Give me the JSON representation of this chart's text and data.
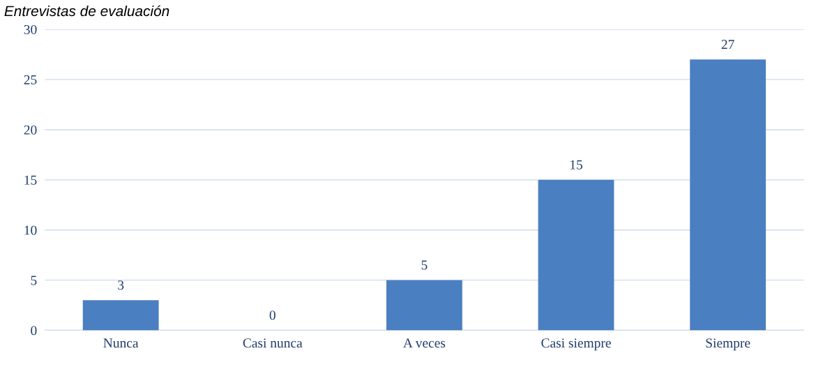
{
  "chart_data": {
    "type": "bar",
    "title": "Entrevistas de evaluación",
    "categories": [
      "Nunca",
      "Casi nunca",
      "A veces",
      "Casi siempre",
      "Siempre"
    ],
    "values": [
      3,
      0,
      5,
      15,
      27
    ],
    "color": "#4a7fc1",
    "ylim": [
      0,
      30
    ],
    "yticks": [
      0,
      5,
      10,
      15,
      20,
      25,
      30
    ],
    "grid": "y",
    "data_labels": true
  }
}
